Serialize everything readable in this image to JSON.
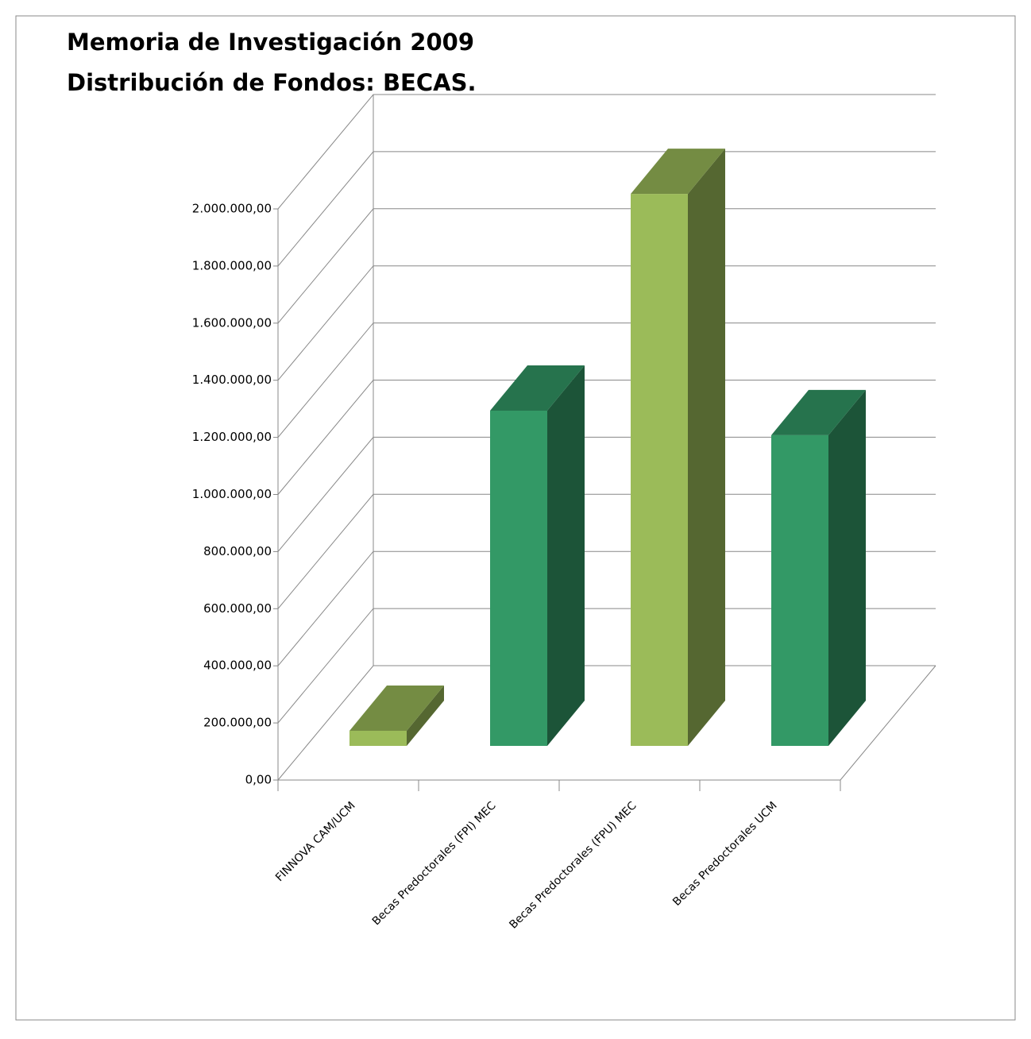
{
  "chart_data": {
    "type": "bar3d",
    "title": "Memoria de Investigación 2009",
    "subtitle": "Distribución de Fondos: BECAS.",
    "categories": [
      "FINNOVA CAM/UCM",
      "Becas Predoctorales (FPI) MEC",
      "Becas Predoctorales (FPU) MEC",
      "Becas Predoctorales UCM"
    ],
    "values": [
      53000,
      1174000,
      1933000,
      1088000
    ],
    "colors": [
      "#9bbb59",
      "#339966",
      "#9bbb59",
      "#339966"
    ],
    "ylim": [
      0,
      2000000
    ],
    "yticks": [
      {
        "value": 0,
        "label": "0,00"
      },
      {
        "value": 200000,
        "label": "200.000,00"
      },
      {
        "value": 400000,
        "label": "400.000,00"
      },
      {
        "value": 600000,
        "label": "600.000,00"
      },
      {
        "value": 800000,
        "label": "800.000,00"
      },
      {
        "value": 1000000,
        "label": "1.000.000,00"
      },
      {
        "value": 1200000,
        "label": "1.200.000,00"
      },
      {
        "value": 1400000,
        "label": "1.400.000,00"
      },
      {
        "value": 1600000,
        "label": "1.600.000,00"
      },
      {
        "value": 1800000,
        "label": "1.800.000,00"
      },
      {
        "value": 2000000,
        "label": "2.000.000,00"
      }
    ],
    "grid": true
  }
}
